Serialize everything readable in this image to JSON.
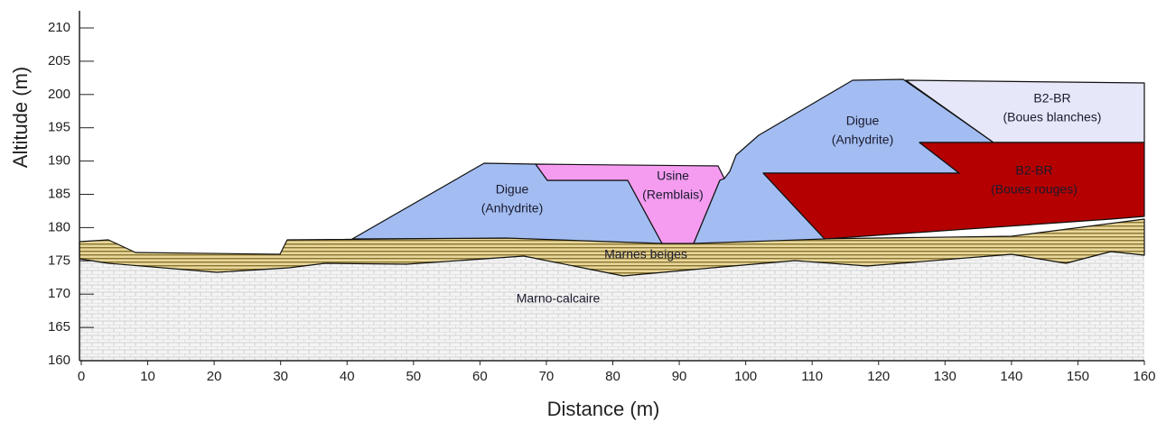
{
  "x_axis": {
    "label": "Distance (m)",
    "lim": [
      0,
      160
    ],
    "ticks": [
      0,
      10,
      20,
      30,
      40,
      50,
      60,
      70,
      80,
      90,
      100,
      110,
      120,
      130,
      140,
      150,
      160
    ]
  },
  "y_axis": {
    "label": "Altitude (m)",
    "lim": [
      160,
      210
    ],
    "ticks": [
      160,
      165,
      170,
      175,
      180,
      185,
      190,
      195,
      200,
      205,
      210
    ]
  },
  "regions": [
    {
      "lines": [
        "Digue",
        "(Anhydrite)"
      ]
    },
    {
      "lines": [
        "Usine",
        "(Remblais)"
      ]
    },
    {
      "lines": [
        "Digue",
        "(Anhydrite)"
      ]
    },
    {
      "lines": [
        "B2-BR",
        "(Boues blanches)"
      ]
    },
    {
      "lines": [
        "B2-BR",
        "(Boues rouges)"
      ]
    },
    {
      "lines": [
        "Marnes beiges"
      ]
    },
    {
      "lines": [
        "Marno-calcaire"
      ]
    }
  ]
}
